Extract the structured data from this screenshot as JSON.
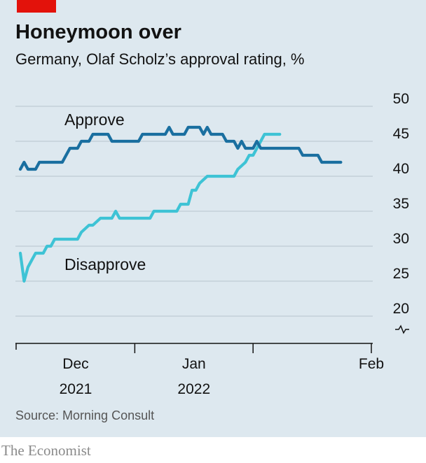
{
  "header": {
    "title": "Honeymoon over",
    "subtitle": "Germany, Olaf Scholz’s approval rating, %"
  },
  "footer": {
    "source": "Source: Morning Consult",
    "brand": "The Economist"
  },
  "colors": {
    "approve": "#1a6fa0",
    "disapprove": "#3ec3d5",
    "brand_red": "#e3120b",
    "background": "#dde8ef"
  },
  "chart_data": {
    "type": "line",
    "title": "Honeymoon over",
    "subtitle": "Germany, Olaf Scholz’s approval rating, %",
    "x_start": "2021-11-01",
    "x_end": "2022-02-01",
    "x_tick_labels": [
      {
        "month": "Dec",
        "year": "2021",
        "date": "2021-12-01"
      },
      {
        "month": "Jan",
        "year": "2022",
        "date": "2022-01-01"
      },
      {
        "month": "Feb",
        "year": "",
        "date": "2022-02-01"
      }
    ],
    "y_ticks": [
      20,
      25,
      30,
      35,
      40,
      45,
      50
    ],
    "ylim": [
      20,
      50
    ],
    "y_axis_break": true,
    "grid": true,
    "series": [
      {
        "name": "Approve",
        "color": "#1a6fa0",
        "label": "Approve",
        "points": [
          [
            "2021-11-01",
            41
          ],
          [
            "2021-11-02",
            42
          ],
          [
            "2021-11-03",
            41
          ],
          [
            "2021-11-05",
            41
          ],
          [
            "2021-11-06",
            42
          ],
          [
            "2021-11-12",
            42
          ],
          [
            "2021-11-13",
            43
          ],
          [
            "2021-11-14",
            44
          ],
          [
            "2021-11-16",
            44
          ],
          [
            "2021-11-17",
            45
          ],
          [
            "2021-11-19",
            45
          ],
          [
            "2021-11-20",
            46
          ],
          [
            "2021-11-24",
            46
          ],
          [
            "2021-11-25",
            45
          ],
          [
            "2021-12-02",
            45
          ],
          [
            "2021-12-03",
            46
          ],
          [
            "2021-12-09",
            46
          ],
          [
            "2021-12-10",
            47
          ],
          [
            "2021-12-11",
            46
          ],
          [
            "2021-12-14",
            46
          ],
          [
            "2021-12-15",
            47
          ],
          [
            "2021-12-18",
            47
          ],
          [
            "2021-12-19",
            46
          ],
          [
            "2021-12-20",
            47
          ],
          [
            "2021-12-21",
            46
          ],
          [
            "2021-12-24",
            46
          ],
          [
            "2021-12-25",
            45
          ],
          [
            "2021-12-27",
            45
          ],
          [
            "2021-12-28",
            44
          ],
          [
            "2021-12-29",
            45
          ],
          [
            "2021-12-30",
            44
          ],
          [
            "2022-01-01",
            44
          ],
          [
            "2022-01-02",
            45
          ],
          [
            "2022-01-03",
            44
          ],
          [
            "2022-01-13",
            44
          ],
          [
            "2022-01-14",
            43
          ],
          [
            "2022-01-18",
            43
          ],
          [
            "2022-01-19",
            42
          ],
          [
            "2022-01-24",
            42
          ]
        ]
      },
      {
        "name": "Disapprove",
        "color": "#3ec3d5",
        "label": "Disapprove",
        "points": [
          [
            "2021-11-01",
            29
          ],
          [
            "2021-11-02",
            25
          ],
          [
            "2021-11-03",
            27
          ],
          [
            "2021-11-04",
            28
          ],
          [
            "2021-11-05",
            29
          ],
          [
            "2021-11-07",
            29
          ],
          [
            "2021-11-08",
            30
          ],
          [
            "2021-11-09",
            30
          ],
          [
            "2021-11-10",
            31
          ],
          [
            "2021-11-16",
            31
          ],
          [
            "2021-11-17",
            32
          ],
          [
            "2021-11-19",
            33
          ],
          [
            "2021-11-20",
            33
          ],
          [
            "2021-11-22",
            34
          ],
          [
            "2021-11-25",
            34
          ],
          [
            "2021-11-26",
            35
          ],
          [
            "2021-11-27",
            34
          ],
          [
            "2021-12-05",
            34
          ],
          [
            "2021-12-06",
            35
          ],
          [
            "2021-12-12",
            35
          ],
          [
            "2021-12-13",
            36
          ],
          [
            "2021-12-15",
            36
          ],
          [
            "2021-12-16",
            38
          ],
          [
            "2021-12-17",
            38
          ],
          [
            "2021-12-18",
            39
          ],
          [
            "2021-12-20",
            40
          ],
          [
            "2021-12-27",
            40
          ],
          [
            "2021-12-28",
            41
          ],
          [
            "2021-12-30",
            42
          ],
          [
            "2021-12-31",
            43
          ],
          [
            "2022-01-01",
            43
          ],
          [
            "2022-01-02",
            44
          ],
          [
            "2022-01-03",
            45
          ],
          [
            "2022-01-04",
            46
          ],
          [
            "2022-01-08",
            46
          ]
        ]
      }
    ]
  }
}
